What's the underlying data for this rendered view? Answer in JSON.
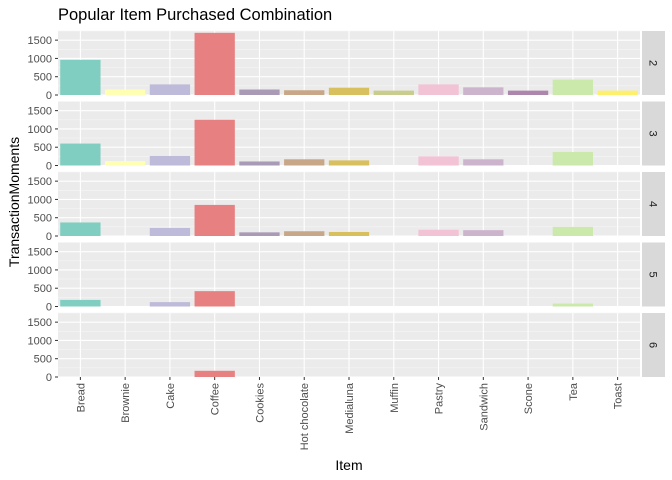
{
  "chart_data": {
    "type": "bar",
    "title": "Popular Item Purchased Combination",
    "xlabel": "Item",
    "ylabel": "TransactionMoments",
    "ylim": [
      0,
      1750
    ],
    "yticks": [
      0,
      500,
      1000,
      1500
    ],
    "grid": true,
    "legend": "none",
    "facet_by": "rows",
    "categories": [
      "Bread",
      "Brownie",
      "Cake",
      "Coffee",
      "Cookies",
      "Hot chocolate",
      "Medialuna",
      "Muffin",
      "Pastry",
      "Sandwich",
      "Scone",
      "Tea",
      "Toast"
    ],
    "colors": [
      "#80cdc1",
      "#ffffb3",
      "#bebada",
      "#e78080",
      "#a99ab5",
      "#c7a787",
      "#d8c05f",
      "#c8cc8d",
      "#f2c2d5",
      "#cdb4cd",
      "#ad86ad",
      "#cbe9ab",
      "#fff06c"
    ],
    "panels": [
      {
        "label": "2",
        "values": [
          960,
          150,
          290,
          1700,
          150,
          130,
          200,
          120,
          290,
          210,
          120,
          420,
          120
        ]
      },
      {
        "label": "3",
        "values": [
          600,
          120,
          260,
          1250,
          110,
          170,
          140,
          0,
          250,
          170,
          0,
          370,
          0
        ]
      },
      {
        "label": "4",
        "values": [
          370,
          0,
          220,
          850,
          100,
          130,
          110,
          0,
          170,
          160,
          0,
          250,
          0
        ]
      },
      {
        "label": "5",
        "values": [
          180,
          0,
          120,
          420,
          0,
          0,
          0,
          0,
          0,
          0,
          0,
          80,
          0
        ]
      },
      {
        "label": "6",
        "values": [
          0,
          0,
          0,
          170,
          0,
          0,
          0,
          0,
          0,
          0,
          0,
          0,
          0
        ]
      }
    ]
  }
}
